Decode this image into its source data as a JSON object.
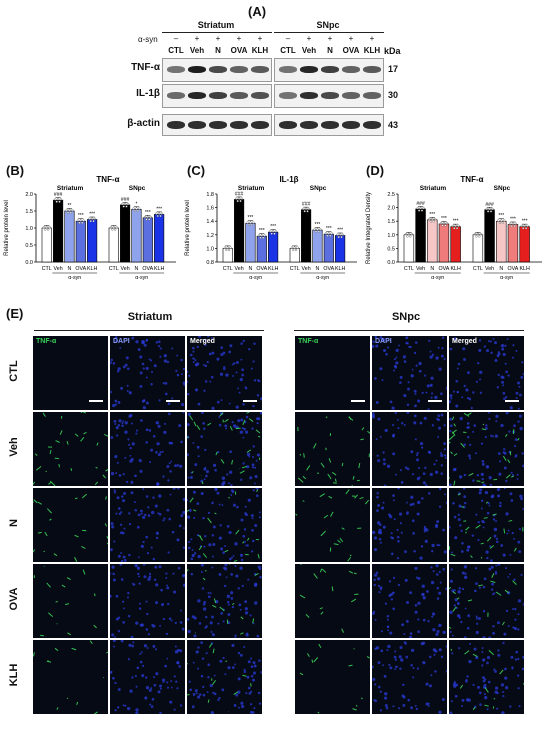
{
  "panelA": {
    "letter": "(A)",
    "regions": [
      "Striatum",
      "SNpc"
    ],
    "asyn_label": "α-syn",
    "signs": [
      "–",
      "+",
      "+",
      "+",
      "+"
    ],
    "lanes": [
      "CTL",
      "Veh",
      "N",
      "OVA",
      "KLH"
    ],
    "kda_label": "kDa",
    "rows": [
      {
        "name": "TNF-α",
        "kda": "17"
      },
      {
        "name": "IL-1β",
        "kda": "30"
      },
      {
        "name": "β-actin",
        "kda": "43"
      }
    ]
  },
  "panelB_letter": "(B)",
  "panelC_letter": "(C)",
  "panelD_letter": "(D)",
  "chart_data": [
    {
      "type": "bar",
      "title": "TNF-α",
      "ylabel": "Relative protein level",
      "ylim": [
        0,
        2.0
      ],
      "yticks": [
        "0.0",
        "0.5",
        "1.0",
        "1.5",
        "2.0"
      ],
      "regions": [
        "Striatum",
        "SNpc"
      ],
      "group_label": "α-syn",
      "categories": [
        "CTL",
        "Veh",
        "N",
        "OVA",
        "KLH"
      ],
      "series": [
        {
          "region": "Striatum",
          "values": [
            1.0,
            1.82,
            1.5,
            1.2,
            1.25
          ],
          "annotations": [
            "",
            "###",
            "**",
            "***",
            "***"
          ]
        },
        {
          "region": "SNpc",
          "values": [
            1.0,
            1.68,
            1.55,
            1.3,
            1.4
          ],
          "annotations": [
            "",
            "###",
            "*",
            "***",
            "***"
          ]
        }
      ]
    },
    {
      "type": "bar",
      "title": "IL-1β",
      "ylabel": "Relative protein level",
      "ylim": [
        0.8,
        1.8
      ],
      "yticks": [
        "0.8",
        "1.0",
        "1.2",
        "1.4",
        "1.6",
        "1.8"
      ],
      "regions": [
        "Striatum",
        "SNpc"
      ],
      "group_label": "α-syn",
      "categories": [
        "CTL",
        "Veh",
        "N",
        "OVA",
        "KLH"
      ],
      "series": [
        {
          "region": "Striatum",
          "values": [
            1.0,
            1.72,
            1.37,
            1.18,
            1.24
          ],
          "annotations": [
            "",
            "###",
            "***",
            "***",
            "***"
          ]
        },
        {
          "region": "SNpc",
          "values": [
            1.0,
            1.57,
            1.27,
            1.21,
            1.19
          ],
          "annotations": [
            "",
            "###",
            "***",
            "***",
            "***"
          ]
        }
      ]
    },
    {
      "type": "bar",
      "title": "TNF-α",
      "ylabel": "Relative Integrated Density",
      "ylim": [
        0,
        2.5
      ],
      "yticks": [
        "0.0",
        "0.5",
        "1.0",
        "1.5",
        "2.0",
        "2.5"
      ],
      "regions": [
        "Striatum",
        "SNpc"
      ],
      "group_label": "α-syn",
      "categories": [
        "CTL",
        "Veh",
        "N",
        "OVA",
        "KLH"
      ],
      "series": [
        {
          "region": "Striatum",
          "values": [
            1.0,
            1.95,
            1.55,
            1.4,
            1.3
          ],
          "annotations": [
            "",
            "###",
            "***",
            "***",
            "***"
          ]
        },
        {
          "region": "SNpc",
          "values": [
            1.0,
            1.92,
            1.5,
            1.38,
            1.3
          ],
          "annotations": [
            "",
            "###",
            "***",
            "***",
            "***"
          ]
        }
      ]
    }
  ],
  "panelE": {
    "letter": "(E)",
    "regions": [
      "Striatum",
      "SNpc"
    ],
    "channels": [
      "TNF-α",
      "DAPI",
      "Merged"
    ],
    "rows": [
      "CTL",
      "Veh",
      "N",
      "OVA",
      "KLH"
    ]
  },
  "colors": {
    "ctl": "#ffffff",
    "veh": "#000000",
    "B_N": "#8fa3ec",
    "B_OVA": "#5b6fe0",
    "B_KLH": "#1b33e6",
    "C_N": "#8fa3ec",
    "C_OVA": "#5b6fe0",
    "C_KLH": "#1b33e6",
    "D_N": "#f7c7c7",
    "D_OVA": "#ef7b7b",
    "D_KLH": "#e51e1e",
    "tnf_green": "#39d45a",
    "dapi_blue": "#2a3bd8"
  }
}
